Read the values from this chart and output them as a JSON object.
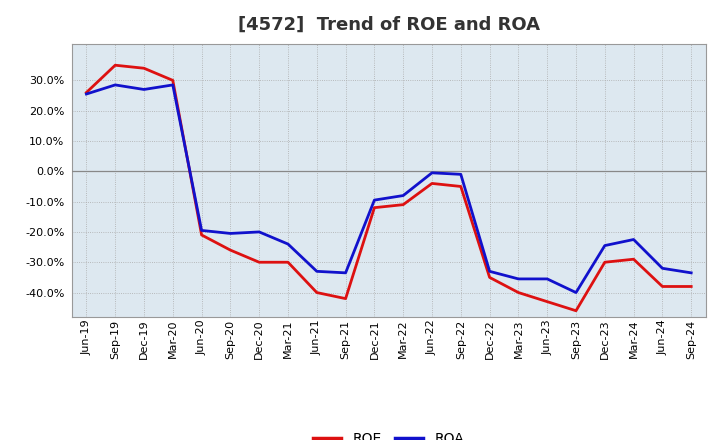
{
  "title": "[4572]  Trend of ROE and ROA",
  "x_labels": [
    "Jun-19",
    "Sep-19",
    "Dec-19",
    "Mar-20",
    "Jun-20",
    "Sep-20",
    "Dec-20",
    "Mar-21",
    "Jun-21",
    "Sep-21",
    "Dec-21",
    "Mar-22",
    "Jun-22",
    "Sep-22",
    "Dec-22",
    "Mar-23",
    "Jun-23",
    "Sep-23",
    "Dec-23",
    "Mar-24",
    "Jun-24",
    "Sep-24"
  ],
  "ROE": [
    0.26,
    0.35,
    0.34,
    0.3,
    -0.21,
    -0.26,
    -0.3,
    -0.3,
    -0.4,
    -0.42,
    -0.12,
    -0.11,
    -0.04,
    -0.05,
    -0.35,
    -0.4,
    -0.43,
    -0.46,
    -0.3,
    -0.29,
    -0.38,
    -0.38
  ],
  "ROA": [
    0.255,
    0.285,
    0.27,
    0.285,
    -0.195,
    -0.205,
    -0.2,
    -0.24,
    -0.33,
    -0.335,
    -0.095,
    -0.08,
    -0.005,
    -0.01,
    -0.33,
    -0.355,
    -0.355,
    -0.4,
    -0.245,
    -0.225,
    -0.32,
    -0.335
  ],
  "roe_color": "#dd1111",
  "roa_color": "#1111cc",
  "ylim": [
    -0.48,
    0.42
  ],
  "yticks": [
    -0.4,
    -0.3,
    -0.2,
    -0.1,
    0.0,
    0.1,
    0.2,
    0.3
  ],
  "line_width": 2.0,
  "bg_color": "#ffffff",
  "plot_bg_color": "#dde8f0",
  "grid_color": "#aaaaaa",
  "zero_line_color": "#888888",
  "title_fontsize": 13,
  "tick_fontsize": 8,
  "legend_fontsize": 10
}
